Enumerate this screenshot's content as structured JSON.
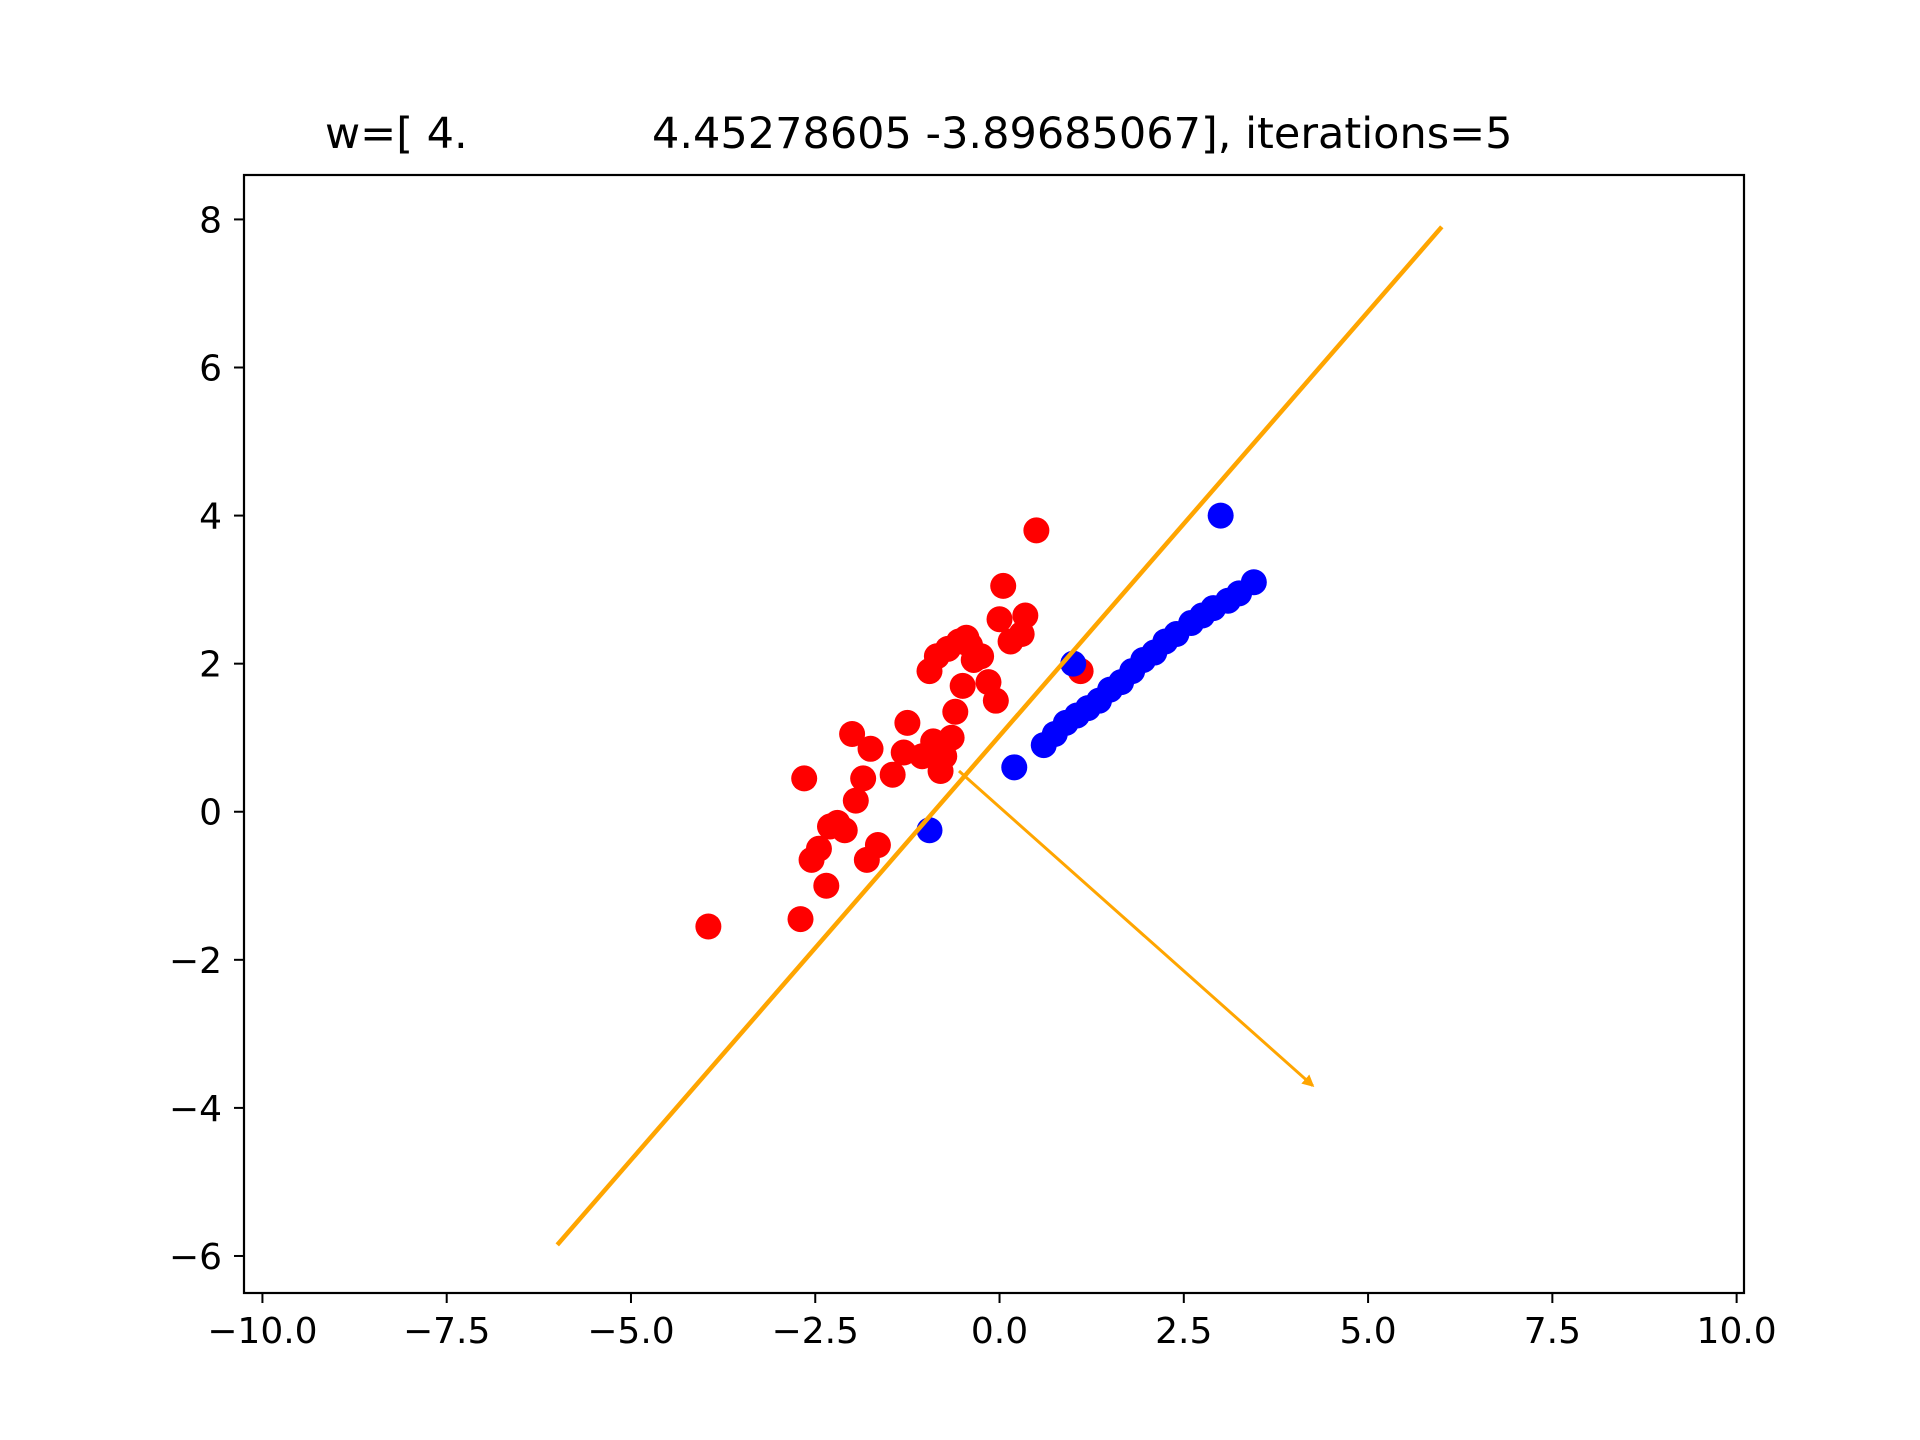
{
  "chart_data": {
    "type": "scatter",
    "title_parts": [
      "w=[ 4.",
      "4.45278605 -3.89685067], iterations=5"
    ],
    "xlabel": "",
    "ylabel": "",
    "xlim": [
      -10.25,
      10.1
    ],
    "ylim": [
      -6.5,
      8.6
    ],
    "xticks": [
      -10.0,
      -7.5,
      -5.0,
      -2.5,
      0.0,
      2.5,
      5.0,
      7.5,
      10.0
    ],
    "xtick_labels": [
      "−10.0",
      "−7.5",
      "−5.0",
      "−2.5",
      "0.0",
      "2.5",
      "5.0",
      "7.5",
      "10.0"
    ],
    "yticks": [
      -6,
      -4,
      -2,
      0,
      2,
      4,
      6,
      8
    ],
    "ytick_labels": [
      "−6",
      "−4",
      "−2",
      "0",
      "2",
      "4",
      "6",
      "8"
    ],
    "grid": false,
    "colors": {
      "class_red": "#ff0000",
      "class_blue": "#0000ff",
      "boundary": "#ffa500",
      "axes": "#000000"
    },
    "series": [
      {
        "color": "#ff0000",
        "x": [
          -3.95,
          -2.7,
          -2.65,
          -2.55,
          -2.45,
          -2.35,
          -2.3,
          -2.2,
          -2.1,
          -2.0,
          -1.95,
          -1.85,
          -1.8,
          -1.75,
          -1.65,
          -1.45,
          -1.3,
          -1.25,
          -1.05,
          -0.95,
          -0.9,
          -0.85,
          -0.8,
          -0.75,
          -0.7,
          -0.65,
          -0.6,
          -0.55,
          -0.5,
          -0.45,
          -0.4,
          -0.35,
          -0.25,
          -0.15,
          -0.05,
          0.0,
          0.05,
          0.15,
          0.3,
          0.35,
          0.5,
          1.1
        ],
        "y": [
          -1.55,
          -1.45,
          0.45,
          -0.65,
          -0.5,
          -1.0,
          -0.2,
          -0.15,
          -0.25,
          1.05,
          0.15,
          0.45,
          -0.65,
          0.85,
          -0.45,
          0.5,
          0.8,
          1.2,
          0.75,
          1.9,
          0.95,
          2.1,
          0.55,
          0.75,
          2.2,
          1.0,
          1.35,
          2.3,
          1.7,
          2.35,
          2.25,
          2.05,
          2.1,
          1.75,
          1.5,
          2.6,
          3.05,
          2.3,
          2.4,
          2.65,
          3.8,
          1.9
        ]
      },
      {
        "color": "#0000ff",
        "x": [
          -0.95,
          0.2,
          0.6,
          0.75,
          0.9,
          1.0,
          1.05,
          1.2,
          1.35,
          1.5,
          1.65,
          1.8,
          1.95,
          2.1,
          2.25,
          2.4,
          2.6,
          2.75,
          2.9,
          3.0,
          3.1,
          3.25,
          3.45
        ],
        "y": [
          -0.25,
          0.6,
          0.9,
          1.05,
          1.2,
          2.0,
          1.3,
          1.4,
          1.5,
          1.65,
          1.75,
          1.9,
          2.05,
          2.15,
          2.3,
          2.4,
          2.55,
          2.65,
          2.75,
          4.0,
          2.85,
          2.95,
          3.1
        ]
      }
    ],
    "boundary_line": {
      "x": [
        -6.0,
        6.0
      ],
      "y": [
        -5.85,
        7.9
      ]
    },
    "normal_arrow": {
      "x": [
        -0.55,
        4.25
      ],
      "y": [
        0.55,
        -3.7
      ]
    }
  }
}
